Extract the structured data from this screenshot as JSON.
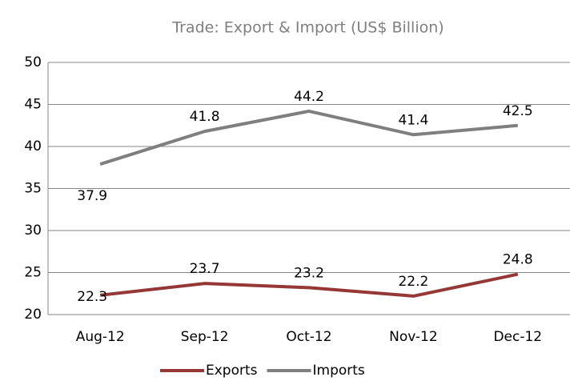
{
  "chart_data": {
    "type": "line",
    "title": "Trade: Export & Import (US$ Billion)",
    "categories": [
      "Aug-12",
      "Sep-12",
      "Oct-12",
      "Nov-12",
      "Dec-12"
    ],
    "series": [
      {
        "name": "Exports",
        "color": "#953735",
        "values": [
          22.3,
          23.7,
          23.2,
          22.2,
          24.8
        ]
      },
      {
        "name": "Imports",
        "color": "#7f7f7f",
        "values": [
          37.9,
          41.8,
          44.2,
          41.4,
          42.5
        ]
      }
    ],
    "ylim": [
      20,
      50
    ],
    "yticks": [
      20,
      25,
      30,
      35,
      40,
      45,
      50
    ],
    "grid": true,
    "legend": "bottom"
  }
}
